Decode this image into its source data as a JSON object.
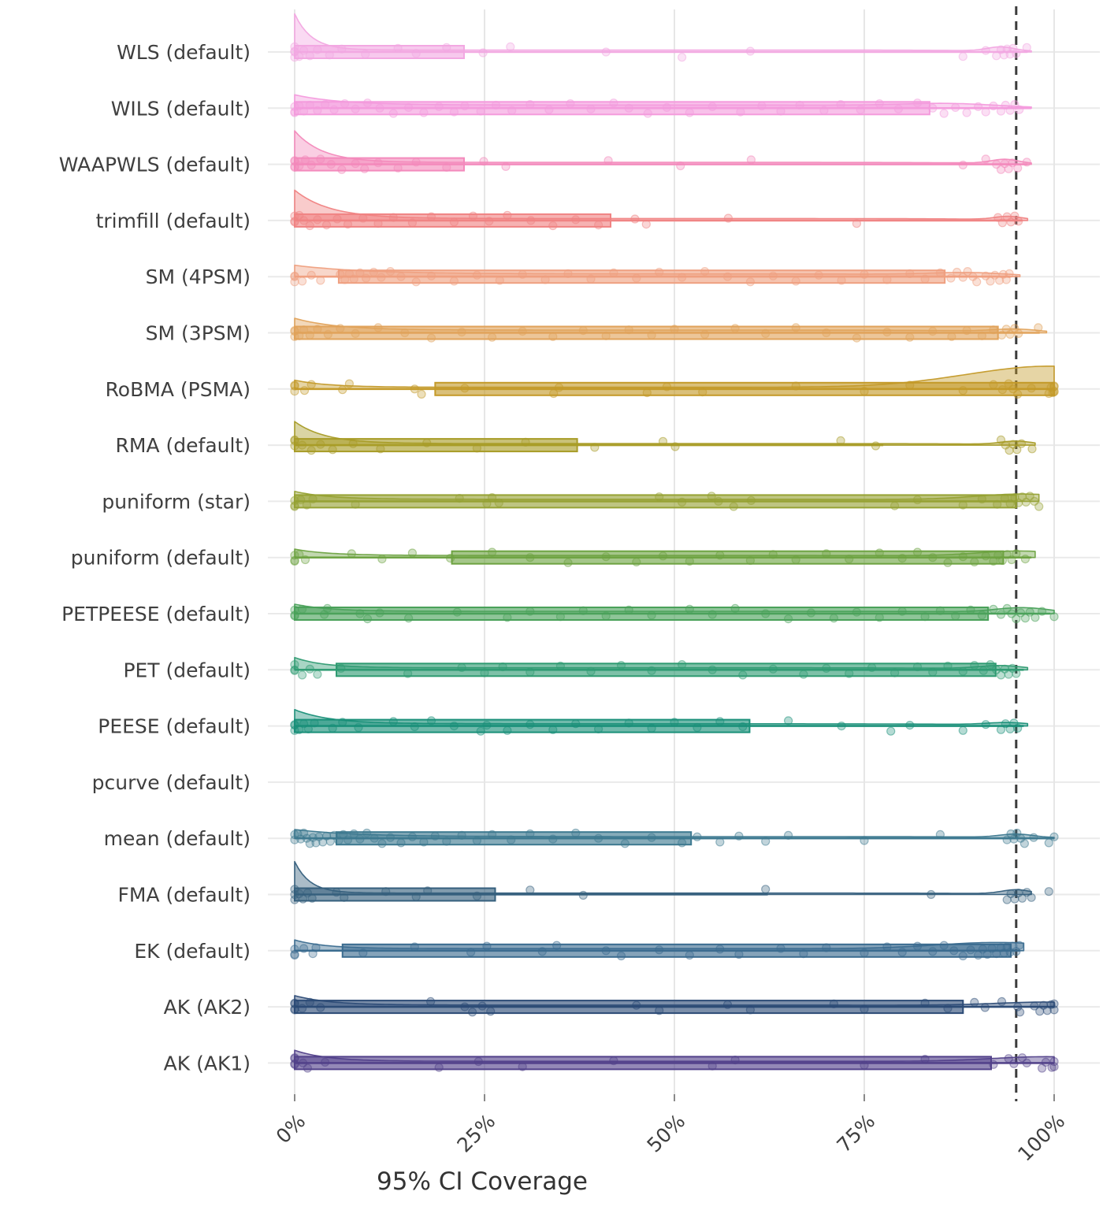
{
  "chart_data": {
    "type": "raincloud",
    "title": "",
    "xlabel": "95% CI Coverage",
    "ylabel": "",
    "x_range_pct": [
      0,
      100.5
    ],
    "grid": "both",
    "background": "#ffffff",
    "gridline_color": "#e6e6e6",
    "reference_line": {
      "value_pct": 95,
      "style": "dashed",
      "color": "#3c3c3c"
    },
    "x_ticks": [
      {
        "value": 0,
        "label": "0%"
      },
      {
        "value": 25,
        "label": "25%"
      },
      {
        "value": 50,
        "label": "50%"
      },
      {
        "value": 75,
        "label": "75%"
      },
      {
        "value": 100,
        "label": "100%"
      }
    ],
    "rows": [
      {
        "label": "WLS (default)",
        "color": "#F2A8E2",
        "has_data": true,
        "box": {
          "lo": 0,
          "q1": 0,
          "q3": 22.3,
          "hi": 96.5
        },
        "violin": {
          "peak": 46,
          "decay": 2.2,
          "tail": 1.5,
          "max": 97,
          "bumps": [
            {
              "x": 93,
              "h": 5,
              "w": 2.5
            }
          ]
        },
        "points": [
          0,
          0,
          0,
          0,
          0.6,
          1.2,
          2,
          3,
          4.6,
          6.2,
          9.3,
          13.6,
          16,
          20,
          24.8,
          28.4,
          41,
          51,
          60,
          88,
          91,
          92.4,
          93,
          93.4,
          93.8,
          94.2,
          94.6,
          95,
          96.4
        ]
      },
      {
        "label": "WILS (default)",
        "color": "#F49BDD",
        "has_data": true,
        "box": {
          "lo": 0,
          "q1": 0,
          "q3": 83.6,
          "hi": 97
        },
        "violin": {
          "peak": 13,
          "decay": 6,
          "tail": 3,
          "max": 97,
          "bumps": [
            {
              "x": 86,
              "h": 3,
              "w": 8
            }
          ]
        },
        "points": [
          0,
          0,
          0,
          0.6,
          1.2,
          2,
          3,
          4,
          5.2,
          6.6,
          8,
          9.6,
          11.2,
          13,
          15,
          17,
          19,
          21,
          22.4,
          24.5,
          26.5,
          28.6,
          31,
          33.5,
          36.3,
          39,
          42,
          44,
          46.5,
          49,
          52,
          55,
          58.7,
          61.5,
          64,
          66.5,
          69.7,
          71.9,
          74.5,
          77,
          79.5,
          82,
          84,
          85.5,
          87,
          88.5,
          90,
          91,
          92,
          93,
          93.6,
          94.2,
          94.8,
          95.4
        ]
      },
      {
        "label": "WAAPWLS (default)",
        "color": "#F38ABC",
        "has_data": true,
        "box": {
          "lo": 0,
          "q1": 0,
          "q3": 22.3,
          "hi": 96.5
        },
        "violin": {
          "peak": 40,
          "decay": 3.6,
          "tail": 1.5,
          "max": 97,
          "bumps": [
            {
              "x": 93.5,
              "h": 5,
              "w": 2.5
            }
          ]
        },
        "points": [
          0,
          0,
          0,
          0,
          0.6,
          1.4,
          2.2,
          3.4,
          4.8,
          6.2,
          8,
          9.2,
          11,
          13.6,
          16,
          20,
          24.9,
          27.8,
          41.3,
          50.8,
          60.1,
          88,
          91,
          92.4,
          93,
          93.5,
          94,
          94.5,
          95.2,
          96.4
        ]
      },
      {
        "label": "trimfill (default)",
        "color": "#F08383",
        "has_data": true,
        "box": {
          "lo": 0,
          "q1": 0,
          "q3": 41.6,
          "hi": 95.8
        },
        "violin": {
          "peak": 36,
          "decay": 4.6,
          "tail": 1.5,
          "max": 96.5,
          "bumps": [
            {
              "x": 94,
              "h": 4,
              "w": 2.5
            }
          ]
        },
        "points": [
          0,
          0,
          0,
          0.6,
          1.2,
          2,
          3,
          4.2,
          5.6,
          7,
          9,
          11,
          13,
          15.5,
          18,
          21,
          23.5,
          25.6,
          28,
          31.1,
          34,
          37,
          40,
          44.8,
          46.3,
          57.1,
          74,
          92.6,
          93.2,
          93.8,
          94.3,
          94.8,
          95.3
        ]
      },
      {
        "label": "SM (4PSM)",
        "color": "#EFA080",
        "has_data": true,
        "box": {
          "lo": 0,
          "q1": 5.8,
          "q3": 85.6,
          "hi": 94.2
        },
        "violin": {
          "peak": 11,
          "decay": 9,
          "tail": 2.5,
          "max": 95.5,
          "bumps": [
            {
              "x": 89,
              "h": 3,
              "w": 7
            }
          ]
        },
        "points": [
          0,
          0,
          0,
          1,
          2.2,
          3.4,
          6,
          6.6,
          7.2,
          7.8,
          8.6,
          9.4,
          10.4,
          11.4,
          12.6,
          14,
          16,
          18,
          21,
          24,
          27,
          30,
          33,
          36,
          39,
          42,
          45,
          48,
          51,
          54,
          57,
          60,
          63,
          66,
          69,
          72,
          75,
          78,
          81,
          83,
          85,
          86.4,
          87.2,
          88,
          88.6,
          89.3,
          89.8,
          91,
          91.6,
          92.2,
          92.8,
          93.3,
          93.7,
          94.1
        ]
      },
      {
        "label": "SM (3PSM)",
        "color": "#E1A35B",
        "has_data": true,
        "box": {
          "lo": 0,
          "q1": 0,
          "q3": 92.6,
          "hi": 98.1
        },
        "violin": {
          "peak": 15,
          "decay": 5.5,
          "tail": 2.5,
          "max": 99,
          "bumps": [
            {
              "x": 95,
              "h": 3,
              "w": 4
            }
          ]
        },
        "points": [
          0,
          0,
          0,
          0.6,
          1.2,
          2,
          3,
          4.4,
          6,
          8,
          11,
          14.5,
          18,
          22,
          26,
          30,
          34,
          38,
          41,
          44,
          47,
          50,
          54,
          58,
          62,
          66,
          70,
          74,
          78,
          81,
          84,
          86.5,
          88.5,
          90.5,
          92,
          93.1,
          93.7,
          94.2,
          94.8,
          95.3,
          97.9
        ]
      },
      {
        "label": "RoBMA (PSMA)",
        "color": "#C49A29",
        "has_data": true,
        "box": {
          "lo": 0,
          "q1": 18.5,
          "q3": 100,
          "hi": 100
        },
        "violin": {
          "peak": 9,
          "decay": 4.5,
          "tail": 1.2,
          "max": 100,
          "bumps": [
            {
              "x": 100,
              "h": 28,
              "w": 16
            }
          ]
        },
        "points": [
          0,
          0,
          0,
          1.3,
          2.2,
          6.3,
          7.2,
          15.8,
          16.7,
          22.4,
          34.1,
          34.8,
          46.4,
          49,
          53.7,
          66,
          75,
          81,
          88,
          92,
          93.2,
          94,
          94.6,
          95.2,
          97,
          99.3,
          99.6,
          99.8,
          100,
          100,
          100,
          100
        ]
      },
      {
        "label": "RMA (default)",
        "color": "#A89C27",
        "has_data": true,
        "box": {
          "lo": 0,
          "q1": 0,
          "q3": 37.2,
          "hi": 77.5
        },
        "violin": {
          "peak": 28,
          "decay": 4,
          "tail": 1,
          "max": 97.5,
          "bumps": [
            {
              "x": 95,
              "h": 4,
              "w": 2.8
            }
          ]
        },
        "points": [
          0,
          0,
          0,
          1,
          2.2,
          3.4,
          5,
          7.7,
          11.3,
          17.4,
          24,
          30.4,
          39.5,
          48.5,
          50.1,
          71.9,
          76.5,
          93,
          93.6,
          94.1,
          94.6,
          95.1,
          95.7,
          97.1
        ]
      },
      {
        "label": "puniform (star)",
        "color": "#96A234",
        "has_data": true,
        "box": {
          "lo": 0,
          "q1": 0,
          "q3": 95,
          "hi": 95
        },
        "violin": {
          "peak": 10,
          "decay": 4.5,
          "tail": 1.6,
          "max": 98,
          "bumps": [
            {
              "x": 96.5,
              "h": 8,
              "w": 9
            }
          ]
        },
        "points": [
          0,
          0,
          0,
          0.8,
          1.6,
          2.4,
          8,
          21.7,
          25.3,
          26,
          26.9,
          48,
          51,
          54.9,
          55.8,
          57.8,
          60.1,
          79,
          82,
          88,
          90.5,
          92.5,
          93.5,
          94.2,
          94.8,
          95.3,
          95.8,
          96.3,
          96.8,
          97.4,
          98
        ]
      },
      {
        "label": "puniform (default)",
        "color": "#6EA342",
        "has_data": true,
        "box": {
          "lo": 0,
          "q1": 20.7,
          "q3": 93.3,
          "hi": 97
        },
        "violin": {
          "peak": 8,
          "decay": 4.5,
          "tail": 1.6,
          "max": 97.5,
          "bumps": [
            {
              "x": 96,
              "h": 7,
              "w": 8
            }
          ]
        },
        "points": [
          0,
          0,
          0,
          0.6,
          1.4,
          7.5,
          11.5,
          15.5,
          20.5,
          26,
          31,
          36,
          41,
          45,
          48.5,
          52,
          56,
          60,
          63,
          66,
          70,
          73,
          77,
          80,
          82,
          84,
          86,
          88,
          89.5,
          91,
          92,
          92.6,
          93.2,
          93.8,
          94.4,
          95,
          96.2
        ]
      },
      {
        "label": "PETPEESE (default)",
        "color": "#4AA15A",
        "has_data": true,
        "box": {
          "lo": 0,
          "q1": 0,
          "q3": 91.3,
          "hi": 99.5
        },
        "violin": {
          "peak": 9,
          "decay": 4.5,
          "tail": 2,
          "max": 100,
          "bumps": [
            {
              "x": 96,
              "h": 6,
              "w": 5
            }
          ]
        },
        "points": [
          0,
          0,
          0,
          1,
          3.9,
          4.3,
          8.6,
          9.6,
          11.2,
          15,
          21.4,
          28,
          31,
          35,
          38,
          41,
          44,
          47,
          52,
          55,
          58,
          62,
          65,
          68,
          71,
          74,
          77,
          80,
          83,
          85,
          87,
          89,
          90.5,
          92,
          93,
          93.8,
          94.4,
          95,
          95.6,
          96.2,
          96.8,
          97.5,
          98.4,
          100
        ]
      },
      {
        "label": "PET (default)",
        "color": "#2F9B72",
        "has_data": true,
        "box": {
          "lo": 0,
          "q1": 5.5,
          "q3": 92.3,
          "hi": 96
        },
        "violin": {
          "peak": 13,
          "decay": 3.8,
          "tail": 1.6,
          "max": 96.5,
          "bumps": [
            {
              "x": 93,
              "h": 4,
              "w": 4
            }
          ]
        },
        "points": [
          0,
          0,
          0,
          1,
          2,
          3,
          6.1,
          14.9,
          22,
          25,
          27.4,
          31,
          35,
          39,
          43,
          47,
          51,
          55,
          59,
          63,
          67,
          70,
          73,
          76,
          79,
          82,
          84,
          86,
          88,
          89.5,
          90.7,
          91.6,
          92.4,
          93,
          93.5,
          94,
          94.5,
          95
        ]
      },
      {
        "label": "PEESE (default)",
        "color": "#1A9079",
        "has_data": true,
        "box": {
          "lo": 0,
          "q1": 0,
          "q3": 59.9,
          "hi": 96
        },
        "violin": {
          "peak": 18,
          "decay": 4.6,
          "tail": 1.8,
          "max": 96.5,
          "bumps": [
            {
              "x": 94,
              "h": 3,
              "w": 4
            }
          ]
        },
        "points": [
          0,
          0,
          0,
          0.6,
          1.2,
          1.8,
          2.6,
          5,
          6.3,
          8.4,
          13,
          15.8,
          18,
          21,
          24.5,
          25.3,
          28,
          31,
          34,
          37,
          40,
          44,
          47,
          50,
          53,
          56,
          59,
          65,
          72,
          78.5,
          81,
          88,
          91,
          93,
          93.6,
          94.2,
          94.7,
          95.2
        ]
      },
      {
        "label": "pcurve (default)",
        "color": null,
        "has_data": false,
        "box": null,
        "violin": null,
        "points": []
      },
      {
        "label": "mean (default)",
        "color": "#3D7990",
        "has_data": true,
        "box": {
          "lo": 0,
          "q1": 5.5,
          "q3": 52.2,
          "hi": 100
        },
        "violin": {
          "peak": 9,
          "decay": 8,
          "tail": 1.2,
          "max": 100,
          "bumps": [
            {
              "x": 95,
              "h": 4,
              "w": 3
            }
          ]
        },
        "points": [
          0,
          0,
          0.4,
          0.8,
          1.2,
          1.6,
          2,
          2.4,
          2.8,
          3.2,
          3.7,
          4.2,
          4.7,
          5.2,
          5.8,
          6.4,
          7,
          7.8,
          8.6,
          9.5,
          10.5,
          11.5,
          12.6,
          14,
          15.5,
          17,
          18.5,
          20,
          22,
          24,
          26,
          28.5,
          31,
          34,
          37,
          40,
          43.5,
          47,
          51,
          53,
          56,
          58.5,
          62,
          65,
          75,
          85,
          93.8,
          94.3,
          94.7,
          95.1,
          95.6,
          96.1,
          97.3,
          99.3,
          100
        ]
      },
      {
        "label": "FMA (default)",
        "color": "#355F7D",
        "has_data": true,
        "box": {
          "lo": 0,
          "q1": 0,
          "q3": 26.4,
          "hi": 62.3
        },
        "violin": {
          "peak": 40,
          "decay": 2,
          "tail": 0.8,
          "max": 97,
          "bumps": [
            {
              "x": 95,
              "h": 5,
              "w": 2.6
            }
          ]
        },
        "points": [
          0,
          0,
          0,
          0.6,
          1.1,
          1.7,
          2.3,
          5.5,
          6.5,
          12,
          16,
          17.5,
          24,
          31,
          38,
          62,
          83.8,
          93.8,
          94.3,
          94.8,
          95.3,
          95.8,
          96.4,
          97,
          99.3
        ]
      },
      {
        "label": "EK (default)",
        "color": "#3A6B8F",
        "has_data": true,
        "box": {
          "lo": 0,
          "q1": 6.3,
          "q3": 94.3,
          "hi": 95.5
        },
        "violin": {
          "peak": 11,
          "decay": 4,
          "tail": 1.6,
          "max": 96,
          "bumps": [
            {
              "x": 93.5,
              "h": 9,
              "w": 12
            }
          ]
        },
        "points": [
          0,
          0,
          0,
          1.2,
          2.4,
          2.8,
          9,
          15.8,
          23.2,
          25.3,
          32.6,
          34.5,
          41,
          43,
          48,
          52,
          56,
          58.5,
          64,
          67,
          70,
          75,
          78,
          80,
          82,
          84,
          85.5,
          86.8,
          88,
          89,
          90,
          90.6,
          91.2,
          91.8,
          92.4,
          93,
          93.4,
          93.8,
          94.2,
          94.6,
          95,
          95.4
        ]
      },
      {
        "label": "AK (AK2)",
        "color": "#2C4B76",
        "has_data": true,
        "box": {
          "lo": 0,
          "q1": 0,
          "q3": 88,
          "hi": 100
        },
        "violin": {
          "peak": 12,
          "decay": 4.6,
          "tail": 1.2,
          "max": 100,
          "bumps": [
            {
              "x": 100,
              "h": 5,
              "w": 10
            }
          ]
        },
        "points": [
          0,
          0,
          0,
          0,
          1,
          2,
          3.4,
          17.9,
          22.4,
          23.4,
          24.7,
          25.8,
          45,
          48,
          57,
          60,
          71,
          75,
          83,
          86,
          89.5,
          90.9,
          93.1,
          95.2,
          95.5,
          97.4,
          98.1,
          98.6,
          99.1,
          99.6,
          100,
          100
        ]
      },
      {
        "label": "AK (AK1)",
        "color": "#52418A",
        "has_data": true,
        "box": {
          "lo": 0,
          "q1": 0,
          "q3": 91.7,
          "hi": 100
        },
        "violin": {
          "peak": 14,
          "decay": 4.2,
          "tail": 1.2,
          "max": 100,
          "bumps": [
            {
              "x": 100,
              "h": 7,
              "w": 11
            }
          ]
        },
        "points": [
          0,
          0,
          0,
          0,
          1.1,
          1.7,
          4,
          19,
          24.2,
          30,
          42,
          55,
          58,
          75,
          83,
          92,
          94,
          94.7,
          95.8,
          96.4,
          98.4,
          98.9,
          99.7,
          100,
          100
        ]
      }
    ]
  }
}
